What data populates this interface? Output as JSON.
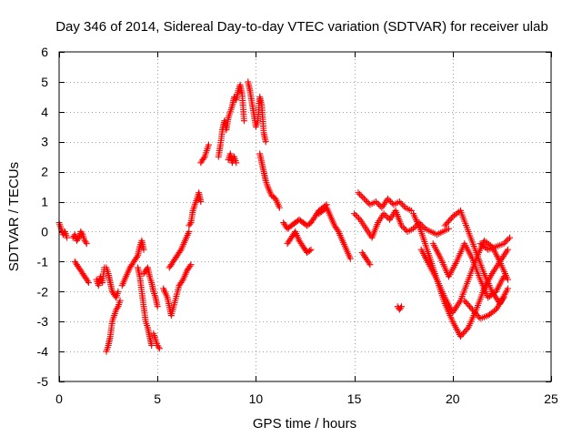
{
  "chart_data": {
    "type": "scatter",
    "title": "Day 346 of 2014, Sidereal Day-to-day VTEC variation (SDTVAR) for receiver ulab",
    "xlabel": "GPS time / hours",
    "ylabel": "SDTVAR / TECUs",
    "xlim": [
      0,
      25
    ],
    "ylim": [
      -5,
      6
    ],
    "xticks": [
      0,
      5,
      10,
      15,
      20,
      25
    ],
    "xtick_labels": [
      "0",
      "5",
      "10",
      "15",
      "20",
      "25"
    ],
    "yticks": [
      -5,
      -4,
      -3,
      -2,
      -1,
      0,
      1,
      2,
      3,
      4,
      5,
      6
    ],
    "ytick_labels": [
      "-5",
      "-4",
      "-3",
      "-2",
      "-1",
      "0",
      "1",
      "2",
      "3",
      "4",
      "5",
      "6"
    ],
    "grid": true,
    "marker": "+",
    "marker_color": "#ff0000",
    "series": [
      {
        "name": "SDTVAR",
        "tracks": [
          {
            "x": [
              0,
              0.1,
              0.2,
              0.3,
              0.4
            ],
            "y": [
              0.3,
              0.1,
              -0.1,
              0.0,
              -0.2
            ]
          },
          {
            "x": [
              0.7,
              0.8,
              0.9,
              1.0,
              1.1,
              1.2,
              1.3,
              1.4
            ],
            "y": [
              -0.2,
              -0.1,
              -0.3,
              -0.2,
              0.0,
              -0.1,
              -0.3,
              -0.4
            ]
          },
          {
            "x": [
              0.8,
              0.9,
              1.0,
              1.1,
              1.2,
              1.3,
              1.4,
              1.5
            ],
            "y": [
              -1.0,
              -1.1,
              -1.2,
              -1.3,
              -1.4,
              -1.5,
              -1.6,
              -1.7
            ]
          },
          {
            "x": [
              1.9,
              2.0,
              2.1,
              2.2,
              2.3
            ],
            "y": [
              -1.6,
              -1.8,
              -1.5,
              -1.7,
              -1.2
            ]
          },
          {
            "x": [
              2.4,
              2.5,
              2.6,
              2.7,
              2.8,
              2.9,
              3.0,
              3.1
            ],
            "y": [
              -4.0,
              -3.8,
              -3.5,
              -3.0,
              -2.8,
              -2.6,
              -2.5,
              -2.3
            ]
          },
          {
            "x": [
              2.4,
              2.5,
              2.6,
              2.7,
              2.8,
              2.9,
              3.0
            ],
            "y": [
              -1.2,
              -1.4,
              -1.7,
              -2.0,
              -2.1,
              -2.2,
              -2.0
            ]
          },
          {
            "x": [
              3.2,
              3.4,
              3.6,
              3.8,
              4.0,
              4.1,
              4.2,
              4.3
            ],
            "y": [
              -1.8,
              -1.5,
              -1.2,
              -1.0,
              -0.8,
              -0.5,
              -0.3,
              -0.6
            ]
          },
          {
            "x": [
              4.0,
              4.1,
              4.2,
              4.3,
              4.4,
              4.5,
              4.6,
              4.7
            ],
            "y": [
              -1.2,
              -1.5,
              -2.0,
              -2.5,
              -3.0,
              -3.2,
              -3.5,
              -3.8
            ]
          },
          {
            "x": [
              4.3,
              4.4,
              4.5,
              4.6,
              4.7,
              4.8,
              4.9,
              5.0
            ],
            "y": [
              -1.4,
              -1.3,
              -1.2,
              -1.5,
              -1.7,
              -2.0,
              -2.2,
              -2.5
            ]
          },
          {
            "x": [
              4.8,
              4.9,
              5.0,
              5.1
            ],
            "y": [
              -3.4,
              -3.6,
              -3.8,
              -3.9
            ]
          },
          {
            "x": [
              5.3,
              5.5,
              5.7,
              5.9,
              6.1,
              6.3,
              6.5,
              6.7
            ],
            "y": [
              -1.9,
              -2.2,
              -2.8,
              -2.3,
              -1.8,
              -1.6,
              -1.3,
              -1.1
            ]
          },
          {
            "x": [
              5.6,
              5.8,
              6.0,
              6.2,
              6.4,
              6.6
            ],
            "y": [
              -1.2,
              -1.0,
              -0.8,
              -0.6,
              -0.3,
              0.0
            ]
          },
          {
            "x": [
              6.6,
              6.7,
              6.8,
              6.9,
              7.0,
              7.1,
              7.2
            ],
            "y": [
              0.2,
              0.3,
              0.7,
              0.9,
              1.1,
              1.3,
              1.0
            ]
          },
          {
            "x": [
              7.2,
              7.3,
              7.4,
              7.5,
              7.6
            ],
            "y": [
              2.3,
              2.4,
              2.5,
              2.7,
              2.9
            ]
          },
          {
            "x": [
              8.1,
              8.2,
              8.3,
              8.4,
              8.5,
              8.6,
              8.7,
              8.8,
              8.9,
              9.0,
              9.1,
              9.2,
              9.3,
              9.4
            ],
            "y": [
              2.5,
              2.9,
              3.4,
              3.7,
              3.4,
              3.8,
              4.0,
              4.2,
              4.5,
              4.4,
              4.7,
              4.9,
              4.6,
              3.7
            ]
          },
          {
            "x": [
              8.6,
              8.7,
              8.8,
              8.9,
              9.0
            ],
            "y": [
              2.4,
              2.6,
              2.3,
              2.5,
              2.3
            ]
          },
          {
            "x": [
              9.6,
              9.7,
              9.8,
              9.9,
              10.0,
              10.1,
              10.2,
              10.3,
              10.4,
              10.5
            ],
            "y": [
              5.0,
              4.7,
              4.3,
              3.9,
              3.5,
              3.7,
              4.5,
              4.2,
              3.3,
              3.0
            ]
          },
          {
            "x": [
              10.2,
              10.3,
              10.4,
              10.5,
              10.6,
              10.8,
              11.0,
              11.2
            ],
            "y": [
              2.6,
              2.3,
              2.0,
              1.7,
              1.5,
              1.2,
              1.1,
              0.8
            ]
          },
          {
            "x": [
              11.4,
              11.6,
              11.8,
              12.0,
              12.2,
              12.4,
              12.6,
              12.8,
              13.0,
              13.2,
              13.4,
              13.6
            ],
            "y": [
              0.3,
              0.1,
              0.2,
              0.3,
              0.4,
              0.3,
              0.2,
              0.3,
              0.5,
              0.7,
              0.8,
              0.9
            ]
          },
          {
            "x": [
              11.6,
              11.8,
              12.0,
              12.2,
              12.4,
              12.6,
              12.8
            ],
            "y": [
              -0.4,
              -0.2,
              0.0,
              -0.3,
              -0.5,
              -0.7,
              -0.6
            ]
          },
          {
            "x": [
              13.2,
              13.4,
              13.6,
              13.8,
              14.0,
              14.2,
              14.4,
              14.6,
              14.8
            ],
            "y": [
              0.6,
              0.7,
              0.8,
              0.5,
              0.2,
              0.0,
              -0.3,
              -0.6,
              -0.9
            ]
          },
          {
            "x": [
              15.0,
              15.3,
              15.6,
              15.9,
              16.2,
              16.5,
              16.8,
              17.1,
              17.4,
              17.7,
              18.0,
              18.3,
              18.6,
              18.9,
              19.2,
              19.5,
              19.8
            ],
            "y": [
              0.6,
              0.4,
              0.1,
              -0.2,
              0.3,
              0.6,
              0.4,
              0.7,
              0.2,
              0.0,
              0.1,
              0.3,
              0.1,
              0.0,
              -0.1,
              0.0,
              0.1
            ]
          },
          {
            "x": [
              15.2,
              15.5,
              15.8,
              16.1,
              16.4,
              16.7,
              17.0,
              17.3,
              17.6,
              17.9
            ],
            "y": [
              1.3,
              1.1,
              0.9,
              1.0,
              0.8,
              1.1,
              0.9,
              1.0,
              0.8,
              0.7
            ]
          },
          {
            "x": [
              15.4,
              15.6,
              15.8
            ],
            "y": [
              -0.7,
              -0.9,
              -1.1
            ]
          },
          {
            "x": [
              17.2,
              17.3,
              17.4
            ],
            "y": [
              -2.5,
              -2.6,
              -2.5
            ]
          },
          {
            "x": [
              18.0,
              18.4,
              18.8,
              19.2,
              19.6,
              20.0,
              20.4,
              20.8,
              21.2,
              21.6,
              22.0,
              22.4,
              22.8
            ],
            "y": [
              0.6,
              0.0,
              -0.8,
              -1.6,
              -2.4,
              -3.0,
              -3.5,
              -3.2,
              -2.6,
              -1.9,
              -1.4,
              -1.0,
              -0.6
            ]
          },
          {
            "x": [
              18.4,
              18.8,
              19.2,
              19.6,
              20.0,
              20.4,
              20.8,
              21.2,
              21.6,
              22.0,
              22.4,
              22.8
            ],
            "y": [
              -0.6,
              -1.1,
              -1.6,
              -2.2,
              -2.7,
              -2.3,
              -1.6,
              -0.9,
              -0.3,
              -0.5,
              -1.0,
              -1.6
            ]
          },
          {
            "x": [
              19.0,
              19.4,
              19.8,
              20.2,
              20.6,
              21.0,
              21.4,
              21.8,
              22.2,
              22.6
            ],
            "y": [
              -0.4,
              -0.9,
              -1.5,
              -1.0,
              -0.4,
              -0.9,
              -1.6,
              -2.2,
              -2.0,
              -1.5
            ]
          },
          {
            "x": [
              19.6,
              20.0,
              20.4,
              20.8,
              21.2,
              21.6,
              22.0,
              22.4,
              22.8
            ],
            "y": [
              0.2,
              0.5,
              0.7,
              0.0,
              -0.7,
              -1.4,
              -2.0,
              -2.4,
              -1.9
            ]
          },
          {
            "x": [
              20.6,
              21.0,
              21.4,
              21.8,
              22.2,
              22.6
            ],
            "y": [
              -2.3,
              -2.6,
              -2.9,
              -2.8,
              -2.6,
              -2.2
            ]
          },
          {
            "x": [
              21.4,
              21.8,
              22.2,
              22.6,
              22.9
            ],
            "y": [
              -0.4,
              -0.6,
              -0.5,
              -0.4,
              -0.2
            ]
          }
        ]
      }
    ]
  }
}
